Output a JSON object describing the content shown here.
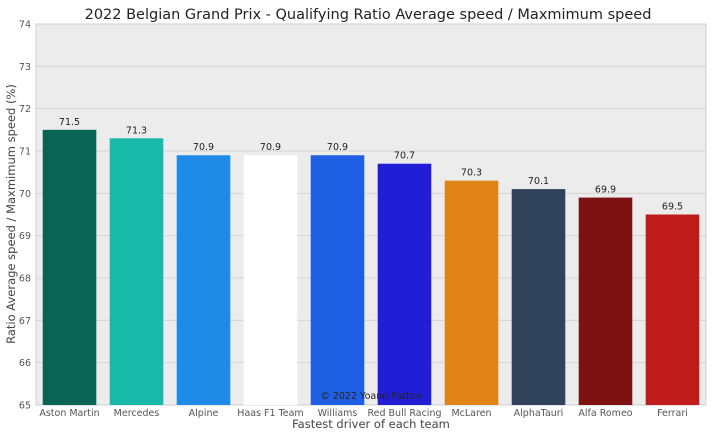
{
  "chart_data": {
    "type": "bar",
    "title": "2022 Belgian Grand Prix - Qualifying Ratio Average speed / Maxmimum speed",
    "xlabel": "Fastest driver of each team",
    "ylabel": "Ratio Average speed / Maxmimum speed (%)",
    "ylim": [
      65,
      74
    ],
    "yticks": [
      "65",
      "66",
      "67",
      "68",
      "69",
      "70",
      "71",
      "72",
      "73",
      "74"
    ],
    "grid": true,
    "categories": [
      "Aston Martin",
      "Mercedes",
      "Alpine",
      "Haas F1 Team",
      "Williams",
      "Red Bull Racing",
      "McLaren",
      "AlphaTauri",
      "Alfa Romeo",
      "Ferrari"
    ],
    "values": [
      71.5,
      71.3,
      70.9,
      70.9,
      70.9,
      70.7,
      70.3,
      70.1,
      69.9,
      69.5
    ],
    "data_labels": [
      "71.5",
      "71.3",
      "70.9",
      "70.9",
      "70.9",
      "70.7",
      "70.3",
      "70.1",
      "69.9",
      "69.5"
    ],
    "colors": [
      "#0b6356",
      "#19b9aa",
      "#1e8ce6",
      "#ffffff",
      "#1f5fe3",
      "#221ed6",
      "#e08418",
      "#31435a",
      "#7e1212",
      "#c11c1c"
    ],
    "annotation": "© 2022 Yoann Patton"
  }
}
